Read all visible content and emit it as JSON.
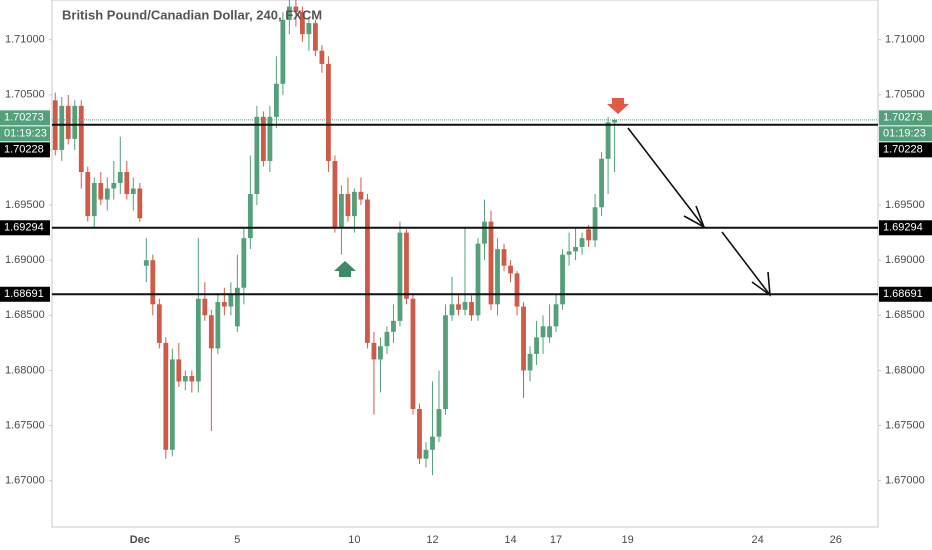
{
  "chart_data": {
    "type": "candlestick",
    "title": "British Pound/Canadian Dollar, 240, FXCM",
    "categories": [
      null,
      null,
      null,
      null,
      null,
      null,
      null,
      null,
      null,
      null,
      null,
      null,
      null,
      "Dec",
      null,
      null,
      null,
      null,
      null,
      null,
      null,
      null,
      null,
      null,
      null,
      null,
      null,
      null,
      "5",
      null,
      null,
      null,
      null,
      null,
      null,
      null,
      null,
      null,
      null,
      null,
      null,
      null,
      null,
      null,
      null,
      null,
      "10",
      null,
      null,
      null,
      null,
      null,
      null,
      null,
      null,
      null,
      null,
      null,
      "12",
      null,
      null,
      null,
      null,
      null,
      null,
      null,
      null,
      null,
      null,
      null,
      "14",
      null,
      null,
      null,
      null,
      null,
      null,
      "17",
      null,
      null,
      null,
      null,
      null,
      null,
      null,
      null,
      null,
      null,
      "19",
      null,
      null,
      null,
      null,
      null,
      null,
      null,
      null,
      null,
      null,
      null,
      null,
      null,
      null,
      null,
      null,
      null,
      null,
      null,
      "24",
      null,
      null,
      null,
      null,
      null,
      null,
      null,
      null,
      null,
      null,
      null,
      "26",
      null,
      null,
      null,
      null,
      null,
      null
    ],
    "open": [
      1.7045,
      1.7,
      1.704,
      1.701,
      1.704,
      1.698,
      1.694,
      1.697,
      1.6955,
      1.6965,
      1.697,
      1.698,
      1.696,
      1.6965,
      1.6895,
      1.69,
      1.686,
      1.6825,
      1.6728,
      1.681,
      1.679,
      1.6795,
      1.679,
      1.6865,
      1.685,
      1.682,
      1.6862,
      1.6858,
      1.684,
      1.6875,
      1.692,
      1.696,
      1.703,
      1.699,
      1.703,
      1.706,
      1.7118,
      1.713,
      1.7125,
      1.7105,
      1.7115,
      1.709,
      1.7078,
      1.699,
      1.693,
      1.696,
      1.694,
      1.6962,
      1.6955,
      1.6825,
      1.681,
      1.6822,
      1.6835,
      1.6845,
      1.6925,
      1.6865,
      1.6765,
      1.672,
      1.6728,
      1.674,
      1.6765,
      1.685,
      1.686,
      1.6855,
      1.6862,
      1.685,
      1.6915,
      1.6935,
      1.686,
      1.691,
      1.6895,
      1.6888,
      1.6858,
      1.68,
      1.6815,
      1.683,
      1.683,
      1.684,
      1.686,
      1.6905,
      1.6908,
      1.6912,
      1.6928,
      1.6918,
      1.6948,
      1.6992,
      1.7025,
      null,
      null,
      null,
      null,
      null,
      null,
      null,
      null,
      null,
      null,
      null,
      null,
      null,
      null,
      null,
      null,
      null,
      null,
      null,
      null,
      null,
      null,
      null,
      null,
      null,
      null,
      null,
      null,
      null,
      null,
      null,
      null,
      null,
      null,
      null,
      null,
      null,
      null,
      null,
      null
    ],
    "high": [
      1.7052,
      1.7048,
      1.705,
      1.7045,
      1.7045,
      1.6985,
      1.6975,
      1.698,
      1.6975,
      1.699,
      1.7012,
      1.699,
      1.6975,
      1.697,
      1.692,
      1.6905,
      1.6865,
      1.683,
      1.682,
      1.6825,
      1.68,
      1.68,
      1.692,
      1.688,
      1.6855,
      1.687,
      1.6875,
      1.688,
      1.6905,
      1.693,
      1.6995,
      1.704,
      1.7035,
      1.704,
      1.7085,
      1.7125,
      1.714,
      1.7136,
      1.713,
      1.712,
      1.7118,
      1.7095,
      1.7085,
      1.6995,
      1.6968,
      1.6975,
      1.6965,
      1.6975,
      1.696,
      1.6835,
      1.683,
      1.684,
      1.686,
      1.6935,
      1.6928,
      1.687,
      1.677,
      1.6735,
      1.679,
      1.68,
      1.686,
      1.6885,
      1.687,
      1.693,
      1.6868,
      1.692,
      1.6955,
      1.6945,
      1.692,
      1.6915,
      1.69,
      1.689,
      1.6862,
      1.6822,
      1.6845,
      1.685,
      1.686,
      1.687,
      1.691,
      1.6925,
      1.693,
      1.6925,
      1.6932,
      1.696,
      1.6998,
      1.703,
      1.70285,
      null,
      null,
      null,
      null,
      null,
      null,
      null,
      null,
      null,
      null,
      null,
      null,
      null,
      null,
      null,
      null,
      null,
      null,
      null,
      null,
      null,
      null,
      null,
      null,
      null,
      null,
      null,
      null,
      null,
      null,
      null,
      null,
      null,
      null,
      null,
      null,
      null,
      null,
      null,
      null
    ],
    "low": [
      1.6995,
      1.699,
      1.7005,
      1.7,
      1.6965,
      1.6935,
      1.693,
      1.695,
      1.6945,
      1.6955,
      1.696,
      1.6955,
      1.6945,
      1.6935,
      1.688,
      1.685,
      1.682,
      1.672,
      1.6722,
      1.6785,
      1.6782,
      1.678,
      1.678,
      1.6845,
      1.6745,
      1.6815,
      1.685,
      1.685,
      1.6835,
      1.686,
      1.691,
      1.695,
      1.6985,
      1.698,
      1.702,
      1.705,
      1.7105,
      1.7112,
      1.7098,
      1.709,
      1.7085,
      1.707,
      1.698,
      1.6925,
      1.6905,
      1.6935,
      1.6925,
      1.695,
      1.682,
      1.676,
      1.678,
      1.6815,
      1.6825,
      1.684,
      1.686,
      1.676,
      1.6715,
      1.6712,
      1.6705,
      1.6735,
      1.676,
      1.6845,
      1.685,
      1.685,
      1.6845,
      1.6845,
      1.69,
      1.6855,
      1.685,
      1.689,
      1.688,
      1.685,
      1.6775,
      1.679,
      1.6805,
      1.6815,
      1.6825,
      1.6835,
      1.6855,
      1.6895,
      1.69,
      1.6905,
      1.6912,
      1.6912,
      1.694,
      1.696,
      1.698,
      null,
      null,
      null,
      null,
      null,
      null,
      null,
      null,
      null,
      null,
      null,
      null,
      null,
      null,
      null,
      null,
      null,
      null,
      null,
      null,
      null,
      null,
      null,
      null,
      null,
      null,
      null,
      null,
      null,
      null,
      null,
      null,
      null,
      null,
      null,
      null,
      null,
      null,
      null,
      null
    ],
    "close": [
      1.7,
      1.704,
      1.701,
      1.704,
      1.698,
      1.694,
      1.697,
      1.6955,
      1.6965,
      1.697,
      1.698,
      1.696,
      1.6965,
      1.6938,
      1.69,
      1.686,
      1.6825,
      1.6728,
      1.681,
      1.679,
      1.6795,
      1.679,
      1.6865,
      1.685,
      1.682,
      1.6862,
      1.6858,
      1.687,
      1.6875,
      1.692,
      1.696,
      1.703,
      1.699,
      1.703,
      1.706,
      1.7118,
      1.713,
      1.7125,
      1.7105,
      1.7115,
      1.709,
      1.7078,
      1.699,
      1.693,
      1.696,
      1.694,
      1.6962,
      1.6955,
      1.6825,
      1.681,
      1.6822,
      1.6835,
      1.6845,
      1.6925,
      1.6865,
      1.6765,
      1.672,
      1.6728,
      1.674,
      1.6765,
      1.685,
      1.686,
      1.6855,
      1.6862,
      1.685,
      1.6915,
      1.6935,
      1.686,
      1.691,
      1.6895,
      1.6888,
      1.6858,
      1.68,
      1.6815,
      1.683,
      1.684,
      1.684,
      1.686,
      1.6905,
      1.6908,
      1.6912,
      1.692,
      1.6918,
      1.6948,
      1.6992,
      1.7025,
      1.70273,
      null,
      null,
      null,
      null,
      null,
      null,
      null,
      null,
      null,
      null,
      null,
      null,
      null,
      null,
      null,
      null,
      null,
      null,
      null,
      null,
      null,
      null,
      null,
      null,
      null,
      null,
      null,
      null,
      null,
      null,
      null,
      null,
      null,
      null,
      null,
      null,
      null,
      null,
      null,
      null
    ],
    "up_color": "#53a07a",
    "down_color": "#d05a48",
    "ylim": [
      1.6658,
      1.7136
    ],
    "yticks": [
      {
        "value": 1.67,
        "label": "1.67000"
      },
      {
        "value": 1.675,
        "label": "1.67500"
      },
      {
        "value": 1.68,
        "label": "1.68000"
      },
      {
        "value": 1.685,
        "label": "1.68500"
      },
      {
        "value": 1.69,
        "label": "1.69000"
      },
      {
        "value": 1.695,
        "label": "1.69500"
      },
      {
        "value": 1.7,
        "label": "1.70000"
      },
      {
        "value": 1.705,
        "label": "1.70500"
      },
      {
        "value": 1.71,
        "label": "1.71000"
      }
    ],
    "grid": false,
    "levels": [
      1.70228,
      1.69294,
      1.68691
    ],
    "last_price": 1.70273,
    "countdown": "01:19:23"
  }
}
